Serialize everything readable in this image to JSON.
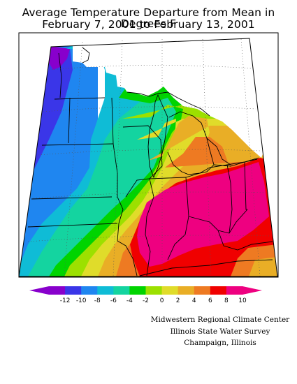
{
  "title": {
    "line1": "Average Temperature Departure from Mean in Degrees F",
    "line2": "February 7, 2001 to February 13, 2001"
  },
  "legend": {
    "tick_labels": [
      "-12",
      "-10",
      "-8",
      "-6",
      "-4",
      "-2",
      "0",
      "2",
      "4",
      "6",
      "8",
      "10"
    ],
    "colors": [
      "#8800cc",
      "#3a36e8",
      "#1f86f0",
      "#0fbcd6",
      "#14d4a0",
      "#00d400",
      "#9ce000",
      "#e0dc2a",
      "#e9ae26",
      "#ee7a22",
      "#f00000",
      "#ee0080"
    ]
  },
  "credits": {
    "line1": "Midwestern Regional Climate Center",
    "line2": "Illinois State Water Survey",
    "line3": "Champaign, Illinois"
  },
  "map": {
    "variable": "Average Temperature Departure from Mean",
    "units": "Degrees F"
  }
}
